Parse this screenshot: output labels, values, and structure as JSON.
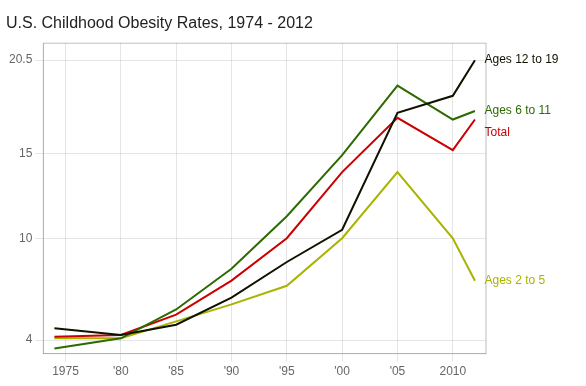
{
  "chart_data": {
    "type": "line",
    "title": "U.S. Childhood Obesity Rates, 1974 - 2012",
    "x": [
      1974,
      1980,
      1985,
      1990,
      1995,
      2000,
      2005,
      2010,
      2012
    ],
    "series": [
      {
        "name": "Ages 12 to 19",
        "color": "#111100",
        "values": [
          4.7,
          4.3,
          4.9,
          6.5,
          8.6,
          10.5,
          17.4,
          18.4,
          20.5
        ]
      },
      {
        "name": "Ages 6 to 11",
        "color": "#2d6a00",
        "values": [
          3.5,
          4.1,
          5.8,
          8.2,
          11.3,
          14.9,
          19.0,
          17.0,
          17.5
        ]
      },
      {
        "name": "Total",
        "color": "#cc0000",
        "values": [
          4.2,
          4.3,
          5.5,
          7.5,
          10.0,
          13.9,
          17.1,
          15.2,
          17.0
        ]
      },
      {
        "name": "Ages 2 to 5",
        "color": "#a8b400",
        "values": [
          4.1,
          4.1,
          5.1,
          6.1,
          7.2,
          10.0,
          13.9,
          10.0,
          7.5
        ]
      }
    ],
    "annotations": [
      {
        "text": "Ages 12 to 19",
        "x": 2012.5,
        "y": 20.5,
        "color": "#111100"
      },
      {
        "text": "Ages 6 to 11",
        "x": 2012.5,
        "y": 17.5,
        "color": "#2d6a00"
      },
      {
        "text": "Total",
        "x": 2012.5,
        "y": 16.2,
        "color": "#cc0000"
      },
      {
        "text": "Ages 2 to 5",
        "x": 2012.5,
        "y": 7.5,
        "color": "#a8b400"
      }
    ],
    "xlim": [
      1973,
      2013
    ],
    "ylim": [
      3.2,
      21.5
    ],
    "xticks": [
      1975,
      {
        "value": 1980,
        "label": "'80"
      },
      {
        "value": 1985,
        "label": "'85"
      },
      {
        "value": 1990,
        "label": "'90"
      },
      {
        "value": 1995,
        "label": "'95"
      },
      {
        "value": 2000,
        "label": "'00"
      },
      {
        "value": 2005,
        "label": "'05"
      },
      2010
    ],
    "yticks": [
      4,
      10,
      15,
      20.5
    ],
    "grid": true
  }
}
